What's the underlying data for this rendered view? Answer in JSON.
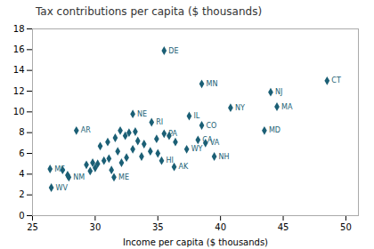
{
  "chart_data": {
    "type": "scatter",
    "title": "Tax contributions per capita ($ thousands)",
    "xlabel": "Income per capita ($ thousands)",
    "xlim": [
      25,
      51
    ],
    "ylim": [
      0,
      18
    ],
    "xticks": [
      25,
      30,
      35,
      40,
      45,
      50
    ],
    "yticks": [
      0,
      2,
      4,
      6,
      8,
      10,
      12,
      14,
      16,
      18
    ],
    "color": "#1b5f75",
    "marker": "diamond",
    "grid": false,
    "x": [
      27.4,
      27.8,
      29.3,
      29.6,
      29.8,
      30.0,
      30.2,
      30.4,
      30.7,
      31.0,
      31.1,
      31.3,
      31.6,
      31.8,
      32.0,
      32.1,
      32.4,
      32.5,
      32.7,
      33.0,
      33.2,
      33.4,
      33.7,
      33.9,
      34.4,
      34.9,
      35.0,
      35.9,
      36.4,
      35.5,
      38.5,
      48.5,
      44.0,
      44.5,
      40.8,
      43.5,
      33.0,
      34.5,
      37.5,
      38.5,
      35.5,
      38.2,
      38.8,
      37.3,
      39.5,
      35.3,
      36.3,
      31.5,
      28.5,
      26.4,
      26.5,
      27.9
    ],
    "values": [
      4.4,
      3.9,
      4.9,
      4.3,
      5.1,
      4.6,
      5.0,
      6.7,
      5.3,
      7.1,
      5.5,
      4.4,
      7.5,
      6.2,
      8.2,
      5.1,
      7.7,
      5.6,
      8.0,
      6.4,
      8.1,
      7.2,
      5.7,
      6.9,
      6.2,
      7.4,
      6.0,
      7.7,
      7.1,
      15.9,
      12.7,
      13.0,
      11.9,
      10.5,
      10.4,
      8.2,
      9.8,
      9.0,
      9.6,
      8.7,
      7.9,
      7.3,
      7.0,
      6.4,
      5.7,
      5.3,
      4.7,
      3.7,
      8.2,
      4.5,
      2.7,
      3.7
    ],
    "labels": [
      null,
      null,
      null,
      null,
      null,
      null,
      null,
      null,
      null,
      null,
      null,
      null,
      null,
      null,
      null,
      null,
      null,
      null,
      null,
      null,
      null,
      null,
      null,
      null,
      null,
      null,
      null,
      null,
      null,
      "DE",
      "MN",
      "CT",
      "NJ",
      "MA",
      "NY",
      "MD",
      "NE",
      "RI",
      "IL",
      "CO",
      "PA",
      "CA",
      "VA",
      "WY",
      "NH",
      "HI",
      "AK",
      "ME",
      "AR",
      "MS",
      "WV",
      "NM"
    ]
  }
}
